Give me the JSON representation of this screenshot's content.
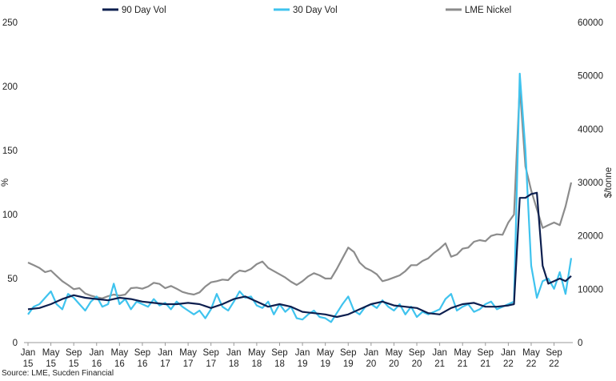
{
  "chart_data": {
    "type": "line",
    "title": "",
    "source": "Source: LME, Sucden Financial",
    "left_axis": {
      "label": "%",
      "range": [
        0,
        250
      ],
      "ticks": [
        0,
        50,
        100,
        150,
        200,
        250
      ]
    },
    "right_axis": {
      "label": "$/tonne",
      "range": [
        0,
        60000
      ],
      "ticks": [
        0,
        10000,
        20000,
        30000,
        40000,
        50000,
        60000
      ]
    },
    "x_axis": {
      "range": [
        "2015-01",
        "2022-12"
      ],
      "ticks": [
        {
          "date": "2015-01",
          "line1": "Jan",
          "line2": "15"
        },
        {
          "date": "2015-05",
          "line1": "May",
          "line2": "15"
        },
        {
          "date": "2015-09",
          "line1": "Sep",
          "line2": "15"
        },
        {
          "date": "2016-01",
          "line1": "Jan",
          "line2": "16"
        },
        {
          "date": "2016-05",
          "line1": "May",
          "line2": "16"
        },
        {
          "date": "2016-09",
          "line1": "Sep",
          "line2": "16"
        },
        {
          "date": "2017-01",
          "line1": "Jan",
          "line2": "17"
        },
        {
          "date": "2017-05",
          "line1": "May",
          "line2": "17"
        },
        {
          "date": "2017-09",
          "line1": "Sep",
          "line2": "17"
        },
        {
          "date": "2018-01",
          "line1": "Jan",
          "line2": "18"
        },
        {
          "date": "2018-05",
          "line1": "May",
          "line2": "18"
        },
        {
          "date": "2018-09",
          "line1": "Sep",
          "line2": "18"
        },
        {
          "date": "2019-01",
          "line1": "Jan",
          "line2": "19"
        },
        {
          "date": "2019-05",
          "line1": "May",
          "line2": "19"
        },
        {
          "date": "2019-09",
          "line1": "Sep",
          "line2": "19"
        },
        {
          "date": "2020-01",
          "line1": "Jan",
          "line2": "20"
        },
        {
          "date": "2020-05",
          "line1": "May",
          "line2": "20"
        },
        {
          "date": "2020-09",
          "line1": "Sep",
          "line2": "20"
        },
        {
          "date": "2021-01",
          "line1": "Jan",
          "line2": "21"
        },
        {
          "date": "2021-05",
          "line1": "May",
          "line2": "21"
        },
        {
          "date": "2021-09",
          "line1": "Sep",
          "line2": "21"
        },
        {
          "date": "2022-01",
          "line1": "Jan",
          "line2": "22"
        },
        {
          "date": "2022-05",
          "line1": "May",
          "line2": "22"
        },
        {
          "date": "2022-09",
          "line1": "Sep",
          "line2": "22"
        }
      ]
    },
    "legend": {
      "position": "top"
    },
    "grid": false,
    "series": [
      {
        "name": "90 Day Vol",
        "axis": "left",
        "color": "#0d1f4f",
        "points": [
          [
            "2015-01",
            26
          ],
          [
            "2015-03",
            27
          ],
          [
            "2015-05",
            30
          ],
          [
            "2015-07",
            34
          ],
          [
            "2015-09",
            37
          ],
          [
            "2015-11",
            35
          ],
          [
            "2016-01",
            34
          ],
          [
            "2016-03",
            33
          ],
          [
            "2016-05",
            35
          ],
          [
            "2016-07",
            34
          ],
          [
            "2016-09",
            32
          ],
          [
            "2016-11",
            31
          ],
          [
            "2017-01",
            30
          ],
          [
            "2017-03",
            30
          ],
          [
            "2017-05",
            31
          ],
          [
            "2017-07",
            30
          ],
          [
            "2017-09",
            27
          ],
          [
            "2017-11",
            30
          ],
          [
            "2018-01",
            34
          ],
          [
            "2018-03",
            36
          ],
          [
            "2018-05",
            32
          ],
          [
            "2018-07",
            28
          ],
          [
            "2018-09",
            30
          ],
          [
            "2018-11",
            28
          ],
          [
            "2019-01",
            24
          ],
          [
            "2019-03",
            23
          ],
          [
            "2019-05",
            22
          ],
          [
            "2019-07",
            20
          ],
          [
            "2019-09",
            22
          ],
          [
            "2019-11",
            26
          ],
          [
            "2020-01",
            30
          ],
          [
            "2020-03",
            32
          ],
          [
            "2020-05",
            29
          ],
          [
            "2020-07",
            28
          ],
          [
            "2020-09",
            27
          ],
          [
            "2020-11",
            23
          ],
          [
            "2021-01",
            22
          ],
          [
            "2021-03",
            27
          ],
          [
            "2021-05",
            30
          ],
          [
            "2021-07",
            31
          ],
          [
            "2021-09",
            28
          ],
          [
            "2021-11",
            28
          ],
          [
            "2022-01",
            29
          ],
          [
            "2022-02",
            30
          ],
          [
            "2022-03",
            113
          ],
          [
            "2022-04",
            113
          ],
          [
            "2022-05",
            116
          ],
          [
            "2022-06",
            117
          ],
          [
            "2022-07",
            60
          ],
          [
            "2022-08",
            46
          ],
          [
            "2022-09",
            48
          ],
          [
            "2022-10",
            50
          ],
          [
            "2022-11",
            48
          ],
          [
            "2022-12",
            52
          ]
        ]
      },
      {
        "name": "30 Day Vol",
        "axis": "left",
        "color": "#3fc3ee",
        "points": [
          [
            "2015-01",
            22
          ],
          [
            "2015-02",
            28
          ],
          [
            "2015-03",
            30
          ],
          [
            "2015-04",
            35
          ],
          [
            "2015-05",
            40
          ],
          [
            "2015-06",
            30
          ],
          [
            "2015-07",
            26
          ],
          [
            "2015-08",
            38
          ],
          [
            "2015-09",
            35
          ],
          [
            "2015-10",
            30
          ],
          [
            "2015-11",
            25
          ],
          [
            "2015-12",
            32
          ],
          [
            "2016-01",
            36
          ],
          [
            "2016-02",
            28
          ],
          [
            "2016-03",
            30
          ],
          [
            "2016-04",
            46
          ],
          [
            "2016-05",
            30
          ],
          [
            "2016-06",
            34
          ],
          [
            "2016-07",
            26
          ],
          [
            "2016-08",
            32
          ],
          [
            "2016-09",
            30
          ],
          [
            "2016-10",
            28
          ],
          [
            "2016-11",
            34
          ],
          [
            "2016-12",
            29
          ],
          [
            "2017-01",
            31
          ],
          [
            "2017-02",
            26
          ],
          [
            "2017-03",
            32
          ],
          [
            "2017-04",
            28
          ],
          [
            "2017-05",
            25
          ],
          [
            "2017-06",
            22
          ],
          [
            "2017-07",
            25
          ],
          [
            "2017-08",
            19
          ],
          [
            "2017-09",
            26
          ],
          [
            "2017-10",
            38
          ],
          [
            "2017-11",
            28
          ],
          [
            "2017-12",
            25
          ],
          [
            "2018-01",
            32
          ],
          [
            "2018-02",
            40
          ],
          [
            "2018-03",
            35
          ],
          [
            "2018-04",
            36
          ],
          [
            "2018-05",
            29
          ],
          [
            "2018-06",
            27
          ],
          [
            "2018-07",
            32
          ],
          [
            "2018-08",
            22
          ],
          [
            "2018-09",
            30
          ],
          [
            "2018-10",
            24
          ],
          [
            "2018-11",
            28
          ],
          [
            "2018-12",
            19
          ],
          [
            "2019-01",
            18
          ],
          [
            "2019-02",
            22
          ],
          [
            "2019-03",
            25
          ],
          [
            "2019-04",
            20
          ],
          [
            "2019-05",
            19
          ],
          [
            "2019-06",
            16
          ],
          [
            "2019-07",
            23
          ],
          [
            "2019-08",
            30
          ],
          [
            "2019-09",
            36
          ],
          [
            "2019-10",
            25
          ],
          [
            "2019-11",
            22
          ],
          [
            "2019-12",
            28
          ],
          [
            "2020-01",
            30
          ],
          [
            "2020-02",
            27
          ],
          [
            "2020-03",
            33
          ],
          [
            "2020-04",
            28
          ],
          [
            "2020-05",
            25
          ],
          [
            "2020-06",
            30
          ],
          [
            "2020-07",
            22
          ],
          [
            "2020-08",
            28
          ],
          [
            "2020-09",
            20
          ],
          [
            "2020-10",
            24
          ],
          [
            "2020-11",
            22
          ],
          [
            "2020-12",
            24
          ],
          [
            "2021-01",
            26
          ],
          [
            "2021-02",
            34
          ],
          [
            "2021-03",
            38
          ],
          [
            "2021-04",
            25
          ],
          [
            "2021-05",
            28
          ],
          [
            "2021-06",
            30
          ],
          [
            "2021-07",
            24
          ],
          [
            "2021-08",
            26
          ],
          [
            "2021-09",
            30
          ],
          [
            "2021-10",
            32
          ],
          [
            "2021-11",
            26
          ],
          [
            "2021-12",
            28
          ],
          [
            "2022-01",
            30
          ],
          [
            "2022-02",
            32
          ],
          [
            "2022-03",
            210
          ],
          [
            "2022-04",
            150
          ],
          [
            "2022-05",
            60
          ],
          [
            "2022-06",
            35
          ],
          [
            "2022-07",
            48
          ],
          [
            "2022-08",
            50
          ],
          [
            "2022-09",
            42
          ],
          [
            "2022-10",
            55
          ],
          [
            "2022-11",
            38
          ],
          [
            "2022-12",
            66
          ]
        ]
      },
      {
        "name": "LME Nickel",
        "axis": "right",
        "color": "#8c8c8c",
        "points": [
          [
            "2015-01",
            15000
          ],
          [
            "2015-02",
            14500
          ],
          [
            "2015-03",
            14000
          ],
          [
            "2015-04",
            13200
          ],
          [
            "2015-05",
            13500
          ],
          [
            "2015-06",
            12500
          ],
          [
            "2015-07",
            11500
          ],
          [
            "2015-08",
            10800
          ],
          [
            "2015-09",
            10000
          ],
          [
            "2015-10",
            10200
          ],
          [
            "2015-11",
            9200
          ],
          [
            "2015-12",
            8800
          ],
          [
            "2016-01",
            8500
          ],
          [
            "2016-02",
            8300
          ],
          [
            "2016-03",
            8700
          ],
          [
            "2016-04",
            9000
          ],
          [
            "2016-05",
            8800
          ],
          [
            "2016-06",
            9000
          ],
          [
            "2016-07",
            10200
          ],
          [
            "2016-08",
            10300
          ],
          [
            "2016-09",
            10100
          ],
          [
            "2016-10",
            10500
          ],
          [
            "2016-11",
            11200
          ],
          [
            "2016-12",
            11000
          ],
          [
            "2017-01",
            10200
          ],
          [
            "2017-02",
            10600
          ],
          [
            "2017-03",
            10100
          ],
          [
            "2017-04",
            9500
          ],
          [
            "2017-05",
            9200
          ],
          [
            "2017-06",
            9000
          ],
          [
            "2017-07",
            9400
          ],
          [
            "2017-08",
            10500
          ],
          [
            "2017-09",
            11300
          ],
          [
            "2017-10",
            11500
          ],
          [
            "2017-11",
            11800
          ],
          [
            "2017-12",
            11700
          ],
          [
            "2018-01",
            12800
          ],
          [
            "2018-02",
            13500
          ],
          [
            "2018-03",
            13300
          ],
          [
            "2018-04",
            13800
          ],
          [
            "2018-05",
            14700
          ],
          [
            "2018-06",
            15200
          ],
          [
            "2018-07",
            14000
          ],
          [
            "2018-08",
            13400
          ],
          [
            "2018-09",
            12800
          ],
          [
            "2018-10",
            12200
          ],
          [
            "2018-11",
            11400
          ],
          [
            "2018-12",
            10800
          ],
          [
            "2019-01",
            11500
          ],
          [
            "2019-02",
            12400
          ],
          [
            "2019-03",
            13000
          ],
          [
            "2019-04",
            12600
          ],
          [
            "2019-05",
            12000
          ],
          [
            "2019-06",
            12000
          ],
          [
            "2019-07",
            13800
          ],
          [
            "2019-08",
            15800
          ],
          [
            "2019-09",
            17800
          ],
          [
            "2019-10",
            17000
          ],
          [
            "2019-11",
            15000
          ],
          [
            "2019-12",
            14000
          ],
          [
            "2020-01",
            13500
          ],
          [
            "2020-02",
            12800
          ],
          [
            "2020-03",
            11500
          ],
          [
            "2020-04",
            11800
          ],
          [
            "2020-05",
            12200
          ],
          [
            "2020-06",
            12600
          ],
          [
            "2020-07",
            13400
          ],
          [
            "2020-08",
            14500
          ],
          [
            "2020-09",
            14500
          ],
          [
            "2020-10",
            15300
          ],
          [
            "2020-11",
            15800
          ],
          [
            "2020-12",
            16800
          ],
          [
            "2021-01",
            17600
          ],
          [
            "2021-02",
            18600
          ],
          [
            "2021-03",
            16100
          ],
          [
            "2021-04",
            16500
          ],
          [
            "2021-05",
            17600
          ],
          [
            "2021-06",
            17800
          ],
          [
            "2021-07",
            18900
          ],
          [
            "2021-08",
            19200
          ],
          [
            "2021-09",
            19000
          ],
          [
            "2021-10",
            20000
          ],
          [
            "2021-11",
            20300
          ],
          [
            "2021-12",
            20200
          ],
          [
            "2022-01",
            22500
          ],
          [
            "2022-02",
            24000
          ],
          [
            "2022-03",
            48000
          ],
          [
            "2022-04",
            33000
          ],
          [
            "2022-05",
            28500
          ],
          [
            "2022-06",
            25000
          ],
          [
            "2022-07",
            21500
          ],
          [
            "2022-08",
            22000
          ],
          [
            "2022-09",
            22500
          ],
          [
            "2022-10",
            22000
          ],
          [
            "2022-11",
            25500
          ],
          [
            "2022-12",
            30000
          ]
        ]
      }
    ]
  }
}
